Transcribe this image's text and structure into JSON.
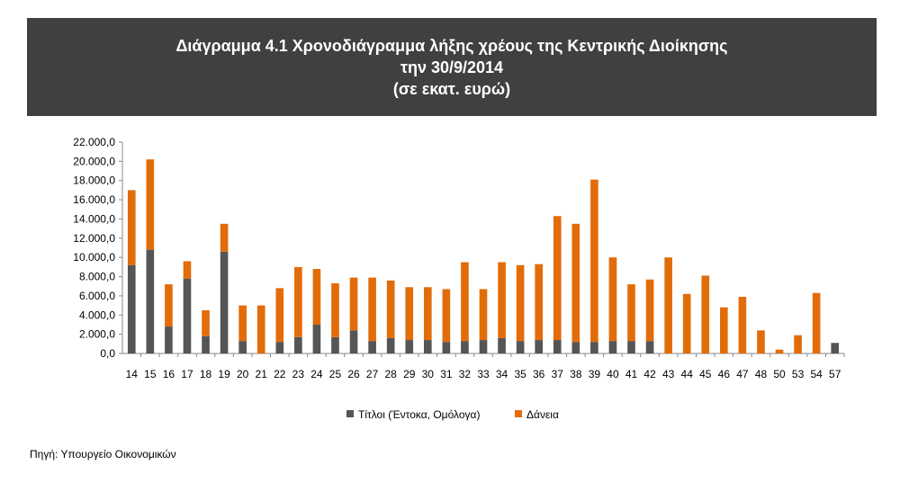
{
  "header": {
    "title_line1": "Διάγραμμα 4.1  Χρονοδιάγραμμα λήξης χρέους της Κεντρικής Διοίκησης",
    "title_line2": "την 30/9/2014",
    "title_line3": "(σε εκατ. ευρώ)"
  },
  "source": "Πηγή:  Υπουργείο Οικονομικών",
  "chart_data": {
    "type": "bar",
    "stacked": true,
    "categories": [
      "14",
      "15",
      "16",
      "17",
      "18",
      "19",
      "20",
      "21",
      "22",
      "23",
      "24",
      "25",
      "26",
      "27",
      "28",
      "29",
      "30",
      "31",
      "32",
      "33",
      "34",
      "35",
      "36",
      "37",
      "38",
      "39",
      "40",
      "41",
      "42",
      "43",
      "44",
      "45",
      "46",
      "47",
      "48",
      "50",
      "53",
      "54",
      "57"
    ],
    "series": [
      {
        "name": "Τίτλοι (Έντοκα, Ομόλογα)",
        "color": "#555555",
        "values": [
          9200,
          10800,
          2800,
          7800,
          1800,
          10600,
          1300,
          0,
          1200,
          1700,
          3000,
          1700,
          2400,
          1300,
          1600,
          1400,
          1400,
          1200,
          1300,
          1400,
          1600,
          1300,
          1400,
          1400,
          1200,
          1200,
          1300,
          1300,
          1300,
          0,
          0,
          0,
          0,
          0,
          0,
          0,
          0,
          0,
          1100
        ]
      },
      {
        "name": "Δάνεια",
        "color": "#e36c0a",
        "values": [
          7800,
          9400,
          4400,
          1800,
          2700,
          2900,
          3700,
          5000,
          5600,
          7300,
          5800,
          5600,
          5500,
          6600,
          6000,
          5500,
          5500,
          5500,
          8200,
          5300,
          7900,
          7900,
          7900,
          12900,
          12300,
          16900,
          8700,
          5900,
          6400,
          10000,
          6200,
          8100,
          4800,
          5900,
          2400,
          400,
          1900,
          6300,
          0
        ]
      }
    ],
    "y_ticks": [
      "0,0",
      "2.000,0",
      "4.000,0",
      "6.000,0",
      "8.000,0",
      "10.000,0",
      "12.000,0",
      "14.000,0",
      "16.000,0",
      "18.000,0",
      "20.000,0",
      "22.000,0"
    ],
    "ylim": [
      0,
      22000
    ],
    "legend_position": "bottom"
  }
}
